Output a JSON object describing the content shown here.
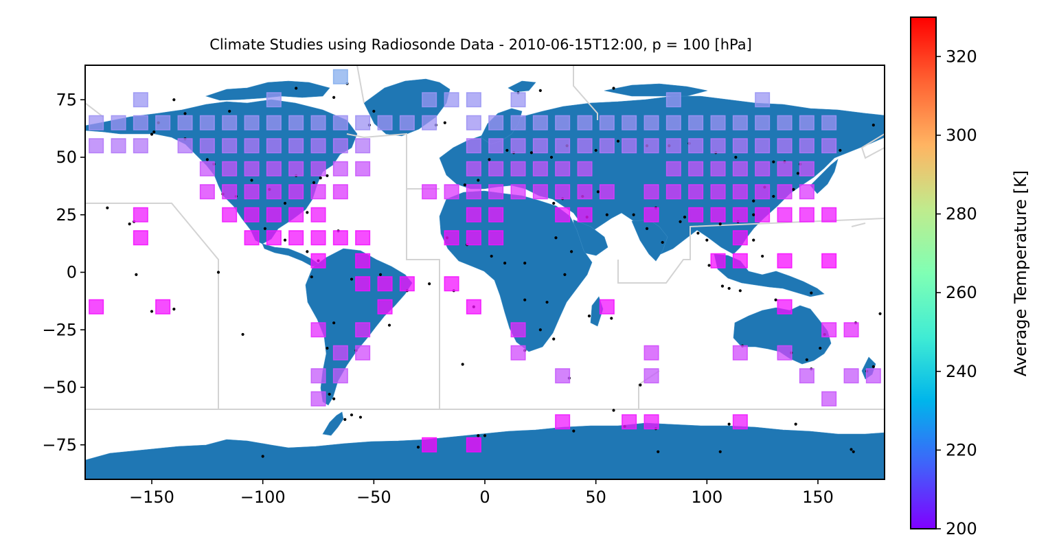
{
  "chart_data": {
    "type": "map-grid",
    "title": "Climate Studies using Radiosonde Data - 2010-06-15T12:00, p = 100 [hPa]",
    "xlim": [
      -180,
      180
    ],
    "ylim": [
      -90,
      90
    ],
    "x_ticks": [
      -150,
      -100,
      -50,
      0,
      50,
      100,
      150
    ],
    "x_tick_labels": [
      "−150",
      "−100",
      "−50",
      "0",
      "50",
      "100",
      "150"
    ],
    "y_ticks": [
      75,
      50,
      25,
      0,
      -25,
      -50,
      -75
    ],
    "y_tick_labels": [
      "75",
      "50",
      "25",
      "0",
      "−25",
      "−50",
      "−75"
    ],
    "colorbar": {
      "label": "Average Temperature [K]",
      "min": 200,
      "max": 330,
      "colormap": "rainbow",
      "ticks": [
        200,
        220,
        240,
        260,
        280,
        300,
        320
      ],
      "tick_labels": [
        "200",
        "220",
        "240",
        "260",
        "280",
        "300",
        "320"
      ]
    },
    "land_color": "#1f77b4",
    "station_color": "#000000",
    "boundary_color": "#d3d3d3",
    "grid_cells": {
      "cell_size_deg": 10,
      "lon_range": [
        -175,
        175
      ],
      "lat_values": [
        85,
        75,
        65,
        55,
        45,
        35,
        25,
        15,
        5,
        -5,
        -15,
        -25,
        -35,
        -45,
        -55,
        -65,
        -75
      ],
      "cells": [
        {
          "lat": 85,
          "lons": [
            -65
          ],
          "temp": 231
        },
        {
          "lat": 75,
          "lons": [
            -155,
            -95,
            -25,
            -15,
            -5,
            15,
            85,
            125
          ],
          "temp": 226
        },
        {
          "lat": 65,
          "lons": [
            -175,
            -165,
            -155,
            -145,
            -135,
            -125,
            -115,
            -105,
            -95,
            -85,
            -75,
            -65,
            -55,
            -45,
            -35,
            -25,
            -5,
            5,
            15,
            25,
            35,
            45,
            55,
            65,
            75,
            85,
            95,
            105,
            115,
            125,
            135,
            145,
            155
          ],
          "temp": 225
        },
        {
          "lat": 55,
          "lons": [
            -175,
            -165,
            -155,
            -135,
            -125,
            -115,
            -105,
            -95,
            -85,
            -75,
            -65,
            -55,
            -5,
            5,
            15,
            25,
            35,
            45,
            55,
            65,
            75,
            85,
            95,
            105,
            115,
            125,
            135,
            145,
            155
          ],
          "temp": 220
        },
        {
          "lat": 45,
          "lons": [
            -125,
            -115,
            -105,
            -95,
            -85,
            -75,
            -65,
            -55,
            -5,
            5,
            15,
            25,
            35,
            45,
            85,
            95,
            105,
            115,
            125,
            135,
            145
          ],
          "temp": 214
        },
        {
          "lat": 35,
          "lons": [
            -125,
            -115,
            -105,
            -95,
            -85,
            -75,
            -65,
            -25,
            -15,
            -5,
            5,
            15,
            25,
            35,
            45,
            55,
            75,
            85,
            95,
            105,
            115,
            125,
            135,
            145
          ],
          "temp": 209
        },
        {
          "lat": 25,
          "lons": [
            -155,
            -115,
            -105,
            -95,
            -85,
            -75,
            -5,
            5,
            35,
            45,
            75,
            95,
            105,
            115,
            125,
            135,
            145,
            155
          ],
          "temp": 204
        },
        {
          "lat": 15,
          "lons": [
            -155,
            -105,
            -95,
            -85,
            -75,
            -65,
            -55,
            -15,
            -5,
            5,
            115
          ],
          "temp": 203
        },
        {
          "lat": 5,
          "lons": [
            -75,
            -55,
            105,
            115,
            135,
            155
          ],
          "temp": 202
        },
        {
          "lat": -5,
          "lons": [
            -55,
            -45,
            -35,
            -15
          ],
          "temp": 203
        },
        {
          "lat": -15,
          "lons": [
            -175,
            -145,
            -45,
            -5,
            55,
            135
          ],
          "temp": 203
        },
        {
          "lat": -25,
          "lons": [
            -75,
            -55,
            15,
            155,
            165
          ],
          "temp": 207
        },
        {
          "lat": -35,
          "lons": [
            -65,
            -55,
            15,
            75,
            115,
            135
          ],
          "temp": 212
        },
        {
          "lat": -45,
          "lons": [
            -75,
            -65,
            35,
            75,
            145,
            165,
            175
          ],
          "temp": 215
        },
        {
          "lat": -55,
          "lons": [
            -75,
            155
          ],
          "temp": 214
        },
        {
          "lat": -65,
          "lons": [
            35,
            65,
            75,
            115
          ],
          "temp": 204
        },
        {
          "lat": -75,
          "lons": [
            -25,
            -5
          ],
          "temp": 201
        }
      ]
    },
    "stations_sample": [
      [
        -170,
        28
      ],
      [
        -160,
        21
      ],
      [
        -158,
        22
      ],
      [
        -150,
        60
      ],
      [
        -149,
        61
      ],
      [
        -147,
        65
      ],
      [
        -135,
        58
      ],
      [
        -125,
        49
      ],
      [
        -122,
        47
      ],
      [
        -118,
        34
      ],
      [
        -112,
        33
      ],
      [
        -105,
        40
      ],
      [
        -97,
        36
      ],
      [
        -90,
        30
      ],
      [
        -85,
        42
      ],
      [
        -80,
        26
      ],
      [
        -77,
        39
      ],
      [
        -74,
        41
      ],
      [
        -71,
        42
      ],
      [
        -66,
        18
      ],
      [
        -99,
        19
      ],
      [
        -90,
        14
      ],
      [
        -80,
        9
      ],
      [
        -75,
        5
      ],
      [
        -78,
        -2
      ],
      [
        -60,
        -3
      ],
      [
        -47,
        -1
      ],
      [
        -35,
        -8
      ],
      [
        -43,
        -23
      ],
      [
        -58,
        -34
      ],
      [
        -68,
        -22
      ],
      [
        -71,
        -33
      ],
      [
        -70,
        -53
      ],
      [
        -68,
        -55
      ],
      [
        -22,
        64
      ],
      [
        -18,
        65
      ],
      [
        -52,
        64
      ],
      [
        -50,
        70
      ],
      [
        -68,
        76
      ],
      [
        -85,
        80
      ],
      [
        -62,
        82
      ],
      [
        15,
        78
      ],
      [
        25,
        79
      ],
      [
        58,
        80
      ],
      [
        -115,
        70
      ],
      [
        -135,
        69
      ],
      [
        -9,
        38
      ],
      [
        -3,
        40
      ],
      [
        2,
        49
      ],
      [
        10,
        53
      ],
      [
        13,
        52
      ],
      [
        21,
        52
      ],
      [
        30,
        50
      ],
      [
        37,
        55
      ],
      [
        50,
        53
      ],
      [
        60,
        57
      ],
      [
        73,
        55
      ],
      [
        83,
        55
      ],
      [
        92,
        56
      ],
      [
        104,
        52
      ],
      [
        113,
        50
      ],
      [
        130,
        48
      ],
      [
        135,
        48
      ],
      [
        142,
        47
      ],
      [
        160,
        53
      ],
      [
        175,
        64
      ],
      [
        -17,
        15
      ],
      [
        -8,
        12
      ],
      [
        3,
        7
      ],
      [
        9,
        4
      ],
      [
        18,
        4
      ],
      [
        32,
        15
      ],
      [
        39,
        9
      ],
      [
        36,
        -1
      ],
      [
        28,
        -13
      ],
      [
        18,
        -12
      ],
      [
        25,
        -25
      ],
      [
        18,
        -34
      ],
      [
        31,
        -29
      ],
      [
        47,
        -19
      ],
      [
        57,
        -20
      ],
      [
        31,
        30
      ],
      [
        35,
        32
      ],
      [
        44,
        33
      ],
      [
        51,
        35
      ],
      [
        46,
        24
      ],
      [
        55,
        25
      ],
      [
        67,
        25
      ],
      [
        73,
        19
      ],
      [
        77,
        28
      ],
      [
        80,
        13
      ],
      [
        88,
        22
      ],
      [
        90,
        24
      ],
      [
        96,
        17
      ],
      [
        100,
        14
      ],
      [
        106,
        21
      ],
      [
        114,
        22
      ],
      [
        121,
        25
      ],
      [
        121,
        31
      ],
      [
        126,
        37
      ],
      [
        130,
        33
      ],
      [
        139,
        36
      ],
      [
        141,
        43
      ],
      [
        101,
        3
      ],
      [
        107,
        -6
      ],
      [
        110,
        -7
      ],
      [
        115,
        -8
      ],
      [
        125,
        7
      ],
      [
        121,
        14
      ],
      [
        147,
        -9
      ],
      [
        116,
        -32
      ],
      [
        131,
        -12
      ],
      [
        138,
        -35
      ],
      [
        145,
        -38
      ],
      [
        151,
        -33
      ],
      [
        153,
        -27
      ],
      [
        147,
        -42
      ],
      [
        172,
        -43
      ],
      [
        175,
        -41
      ],
      [
        178,
        -18
      ],
      [
        167,
        -22
      ],
      [
        -157,
        -1
      ],
      [
        -140,
        -16
      ],
      [
        -150,
        -17
      ],
      [
        -109,
        -27
      ],
      [
        -25,
        -5
      ],
      [
        -14,
        -8
      ],
      [
        -5,
        -15
      ],
      [
        -10,
        -40
      ],
      [
        38,
        -46
      ],
      [
        70,
        -49
      ],
      [
        58,
        -60
      ],
      [
        -60,
        -62
      ],
      [
        -63,
        -64
      ],
      [
        -56,
        -63
      ],
      [
        -100,
        -80
      ],
      [
        -30,
        -76
      ],
      [
        0,
        -71
      ],
      [
        40,
        -69
      ],
      [
        63,
        -67
      ],
      [
        77,
        -68
      ],
      [
        110,
        -66
      ],
      [
        140,
        -66
      ],
      [
        165,
        -77
      ],
      [
        166,
        -78
      ],
      [
        78,
        -78
      ],
      [
        106,
        -78
      ],
      [
        -3,
        -71
      ],
      [
        -140,
        75
      ],
      [
        -120,
        0
      ]
    ]
  }
}
